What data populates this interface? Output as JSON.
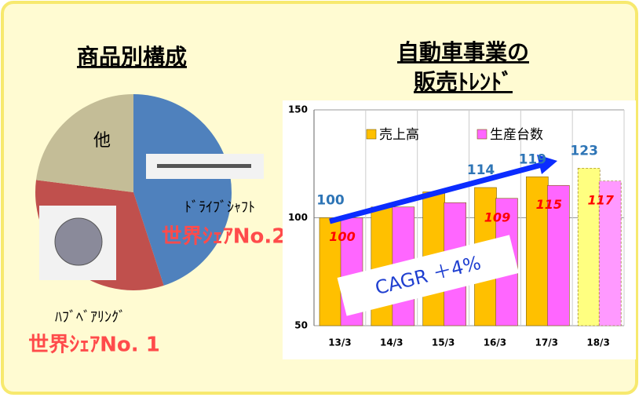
{
  "chart_data": [
    {
      "type": "pie",
      "title": "商品別構成",
      "categories": [
        "ﾄﾞﾗｲﾌﾞｼｬﾌﾄ",
        "ﾊﾌﾞﾍﾞｱﾘﾝｸﾞ",
        "他"
      ],
      "values": [
        45,
        32,
        23
      ],
      "colors": [
        "#4f81bd",
        "#c0504d",
        "#c4bd97"
      ],
      "share_labels": [
        "世界ｼｪｱNo.2",
        "世界ｼｪｱNo. 1",
        null
      ]
    },
    {
      "type": "bar",
      "title": "自動車事業の",
      "subtitle": "販売ﾄﾚﾝﾄﾞ",
      "categories": [
        "13/3",
        "14/3",
        "15/3",
        "16/3",
        "17/3",
        "18/3"
      ],
      "series": [
        {
          "name": "売上高",
          "color": "#ffc000",
          "colors": [
            "#ffc000",
            "#ffc000",
            "#ffc000",
            "#ffc000",
            "#ffc000",
            "#ffff80"
          ],
          "values": [
            100,
            105,
            112,
            114,
            119,
            123
          ],
          "value_labels": [
            "100",
            null,
            null,
            "114",
            "119",
            "123"
          ]
        },
        {
          "name": "生産台数",
          "color": "#ff66ff",
          "colors": [
            "#ff66ff",
            "#ff66ff",
            "#ff66ff",
            "#ff66ff",
            "#ff66ff",
            "#ff99ff"
          ],
          "values": [
            100,
            105,
            107,
            109,
            115,
            117
          ],
          "value_labels": [
            "100",
            null,
            null,
            "109",
            "115",
            "117"
          ]
        }
      ],
      "ylim": [
        50,
        150
      ],
      "yticks": [
        50,
        100,
        150
      ],
      "grid": true,
      "annotation": "CAGR ＋4%"
    }
  ]
}
